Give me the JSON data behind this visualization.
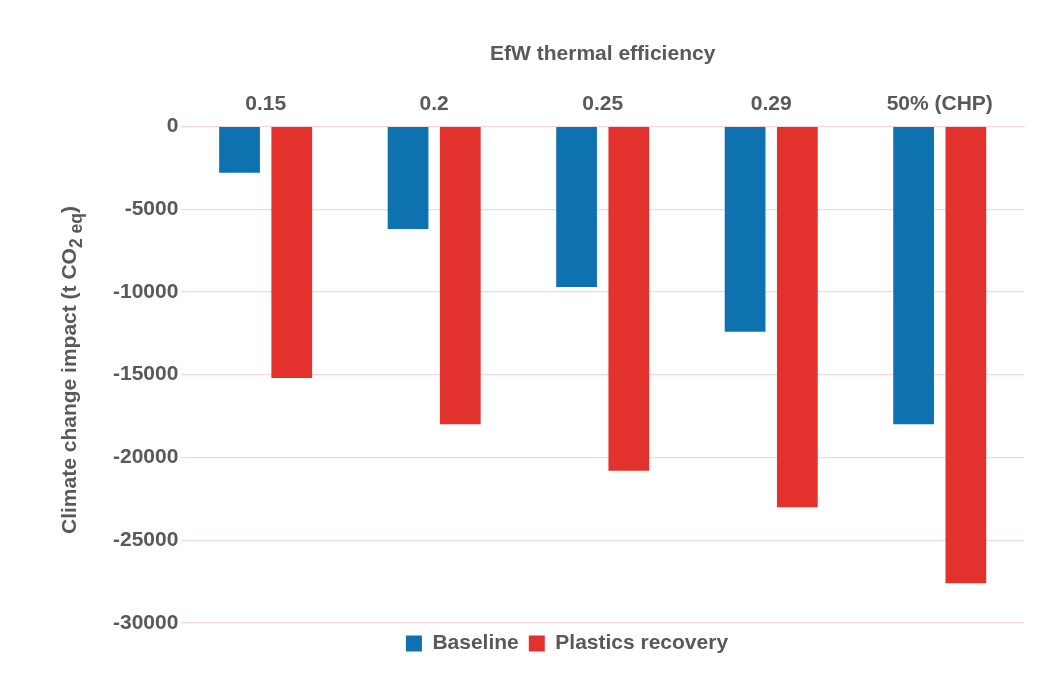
{
  "chart_data": {
    "type": "bar",
    "xlabel": "EfW thermal efficiency",
    "ylabel": "Climate change impact (t CO$_{2 eq}$)",
    "categories": [
      "0.15",
      "0.2",
      "0.25",
      "0.29",
      "50% (CHP)"
    ],
    "series": [
      {
        "name": "Baseline",
        "color": "#0e72b0",
        "values": [
          -2800,
          -6200,
          -9700,
          -12400,
          -18000
        ]
      },
      {
        "name": "Plastics recovery",
        "color": "#e3312d",
        "values": [
          -15200,
          -18000,
          -20800,
          -23000,
          -27600
        ]
      }
    ],
    "ylim": [
      -30000,
      0
    ],
    "yticks": [
      -30000,
      -25000,
      -20000,
      -15000,
      -10000,
      -5000,
      0
    ],
    "grid": "y",
    "legend": "bottom"
  }
}
